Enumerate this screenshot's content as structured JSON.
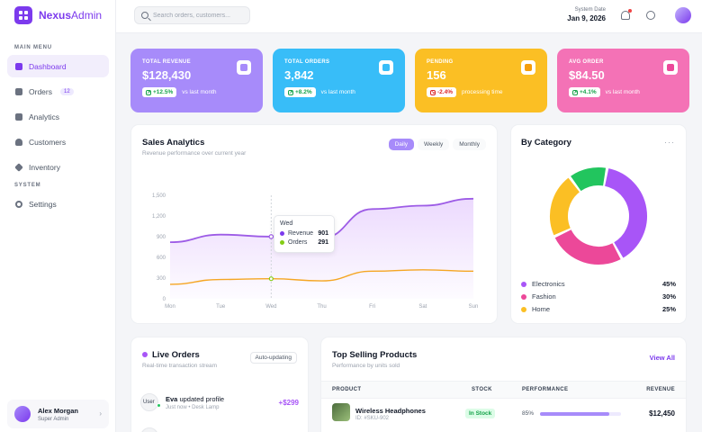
{
  "brand": {
    "name_bold": "Nexus",
    "name_light": "Admin"
  },
  "sidebar": {
    "section_main": "MAIN MENU",
    "section_system": "SYSTEM",
    "items": [
      {
        "label": "Dashboard",
        "icon": "grid-icon"
      },
      {
        "label": "Orders",
        "icon": "cart-icon",
        "badge": "12"
      },
      {
        "label": "Analytics",
        "icon": "chart-icon"
      },
      {
        "label": "Customers",
        "icon": "users-icon"
      },
      {
        "label": "Inventory",
        "icon": "box-icon"
      },
      {
        "label": "Settings",
        "icon": "gear-icon"
      }
    ],
    "user": {
      "name": "Alex Morgan",
      "role": "Super Admin"
    }
  },
  "header": {
    "search_placeholder": "Search orders, customers...",
    "date_label": "System Date",
    "date_value": "Jan 9, 2026"
  },
  "stats": [
    {
      "label": "TOTAL REVENUE",
      "value": "$128,430",
      "change": "+12.5%",
      "sub": "vs last month",
      "color": "#a78bfa"
    },
    {
      "label": "TOTAL ORDERS",
      "value": "3,842",
      "change": "+8.2%",
      "sub": "vs last month",
      "color": "#38bdf8"
    },
    {
      "label": "PENDING",
      "value": "156",
      "change": "-2.4%",
      "sub": "processing time",
      "color": "#fbbf24"
    },
    {
      "label": "AVG ORDER",
      "value": "$84.50",
      "change": "+4.1%",
      "sub": "vs last month",
      "color": "#f472b6"
    }
  ],
  "sales": {
    "title": "Sales Analytics",
    "subtitle": "Revenue performance over current year",
    "toggles": [
      "Daily",
      "Weekly",
      "Monthly"
    ],
    "tooltip": {
      "day": "Wed",
      "revenue_label": "Revenue",
      "revenue": "901",
      "orders_label": "Orders",
      "orders": "291"
    }
  },
  "chart_data": [
    {
      "type": "line",
      "x": [
        "Mon",
        "Tue",
        "Wed",
        "Thu",
        "Fri",
        "Sat",
        "Sun"
      ],
      "yticks": [
        "0",
        "300",
        "600",
        "900",
        "1,200",
        "1,500"
      ],
      "ylim": [
        0,
        1500
      ],
      "series": [
        {
          "name": "Revenue",
          "values": [
            820,
            930,
            901,
            880,
            1300,
            1350,
            1450
          ],
          "color": "#9d5ce6"
        },
        {
          "name": "Orders",
          "values": [
            210,
            280,
            291,
            260,
            400,
            420,
            400
          ],
          "color": "#f5a623"
        }
      ],
      "tooltip_index": 2
    },
    {
      "type": "pie",
      "title": "By Category",
      "categories": [
        "Electronics",
        "Fashion",
        "Home"
      ],
      "values": [
        45,
        30,
        25
      ],
      "labels": [
        "45%",
        "30%",
        "25%"
      ],
      "colors": [
        "#a855f7",
        "#ec4899",
        "#fbbf24"
      ],
      "extra_slice_color": "#22c55e"
    }
  ],
  "live": {
    "title": "Live Orders",
    "subtitle": "Real-time transaction stream",
    "button": "Auto-updating",
    "orders": [
      {
        "avatar": "User",
        "name": "Eva",
        "action": "updated profile",
        "meta": "Just now • Desk Lamp",
        "amount": "+$299"
      }
    ]
  },
  "products": {
    "title": "Top Selling Products",
    "subtitle": "Performance by units sold",
    "view_all": "View All",
    "headers": [
      "PRODUCT",
      "STOCK",
      "PERFORMANCE",
      "REVENUE"
    ],
    "rows": [
      {
        "name": "Wireless Headphones",
        "id": "ID: #SKU-902",
        "stock": "In Stock",
        "performance": 85,
        "performance_label": "85%",
        "revenue": "$12,450"
      }
    ]
  }
}
